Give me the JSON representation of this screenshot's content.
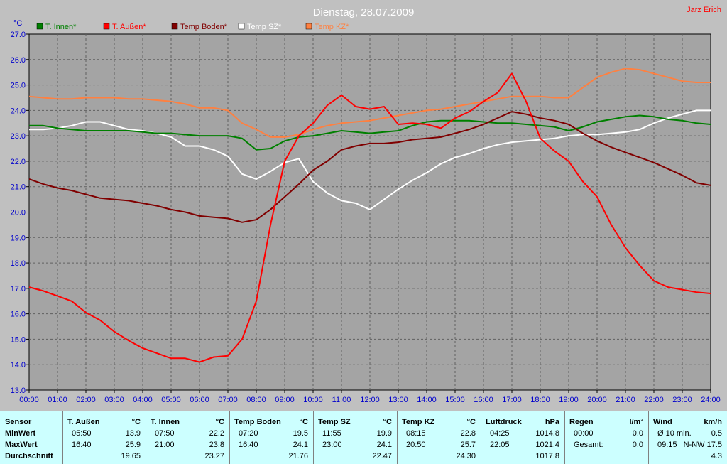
{
  "chart_data": {
    "type": "line",
    "title": "Dienstag, 28.07.2009",
    "author": "Jarz Erich",
    "ylabel": "°C",
    "ylim": [
      13.0,
      27.0
    ],
    "xlim": [
      0,
      24
    ],
    "grid": true,
    "legend_position": "top",
    "y_ticks": [
      "13.0",
      "14.0",
      "15.0",
      "16.0",
      "17.0",
      "18.0",
      "19.0",
      "20.0",
      "21.0",
      "22.0",
      "23.0",
      "24.0",
      "25.0",
      "26.0",
      "27.0"
    ],
    "x_ticks": [
      "00:00",
      "01:00",
      "02:00",
      "03:00",
      "04:00",
      "05:00",
      "06:00",
      "07:00",
      "08:00",
      "09:00",
      "10:00",
      "11:00",
      "12:00",
      "13:00",
      "14:00",
      "15:00",
      "16:00",
      "17:00",
      "18:00",
      "19:00",
      "20:00",
      "21:00",
      "22:00",
      "23:00",
      "24:00"
    ],
    "x_hours": [
      0,
      0.5,
      1,
      1.5,
      2,
      2.5,
      3,
      3.5,
      4,
      4.5,
      5,
      5.5,
      6,
      6.5,
      7,
      7.5,
      8,
      8.5,
      9,
      9.5,
      10,
      10.5,
      11,
      11.5,
      12,
      12.5,
      13,
      13.5,
      14,
      14.5,
      15,
      15.5,
      16,
      16.5,
      17,
      17.5,
      18,
      18.5,
      19,
      19.5,
      20,
      20.5,
      21,
      21.5,
      22,
      22.5,
      23,
      23.5,
      24
    ],
    "series": [
      {
        "name": "T. Innen*",
        "color": "#008000",
        "values": [
          23.4,
          23.4,
          23.3,
          23.25,
          23.2,
          23.2,
          23.2,
          23.2,
          23.15,
          23.1,
          23.1,
          23.05,
          23.0,
          23.0,
          23.0,
          22.9,
          22.45,
          22.5,
          22.8,
          22.95,
          23.0,
          23.1,
          23.2,
          23.15,
          23.1,
          23.15,
          23.2,
          23.4,
          23.55,
          23.6,
          23.6,
          23.6,
          23.55,
          23.5,
          23.5,
          23.45,
          23.4,
          23.35,
          23.2,
          23.35,
          23.55,
          23.65,
          23.75,
          23.8,
          23.75,
          23.65,
          23.6,
          23.5,
          23.45
        ]
      },
      {
        "name": "T. Außen*",
        "color": "#ff0000",
        "values": [
          17.05,
          16.9,
          16.7,
          16.5,
          16.05,
          15.75,
          15.3,
          14.95,
          14.65,
          14.45,
          14.25,
          14.25,
          14.1,
          14.3,
          14.35,
          15.0,
          16.5,
          19.5,
          22.0,
          23.0,
          23.5,
          24.2,
          24.6,
          24.15,
          24.05,
          24.15,
          23.45,
          23.5,
          23.45,
          23.3,
          23.7,
          23.95,
          24.35,
          24.7,
          25.45,
          24.35,
          22.9,
          22.4,
          22.0,
          21.2,
          20.6,
          19.5,
          18.6,
          17.9,
          17.3,
          17.05,
          16.95,
          16.85,
          16.8
        ]
      },
      {
        "name": "Temp Boden*",
        "color": "#800000",
        "values": [
          21.3,
          21.1,
          20.95,
          20.85,
          20.7,
          20.55,
          20.5,
          20.45,
          20.35,
          20.25,
          20.1,
          20.0,
          19.85,
          19.8,
          19.75,
          19.6,
          19.7,
          20.1,
          20.6,
          21.1,
          21.65,
          22.0,
          22.45,
          22.6,
          22.7,
          22.7,
          22.75,
          22.85,
          22.9,
          22.95,
          23.1,
          23.25,
          23.45,
          23.7,
          23.95,
          23.85,
          23.7,
          23.6,
          23.45,
          23.1,
          22.8,
          22.55,
          22.35,
          22.15,
          21.95,
          21.7,
          21.45,
          21.15,
          21.05
        ]
      },
      {
        "name": "Temp SZ*",
        "color": "#ffffff",
        "values": [
          23.25,
          23.25,
          23.3,
          23.4,
          23.55,
          23.55,
          23.4,
          23.25,
          23.2,
          23.1,
          22.95,
          22.6,
          22.6,
          22.45,
          22.2,
          21.5,
          21.3,
          21.6,
          21.95,
          22.1,
          21.2,
          20.75,
          20.45,
          20.35,
          20.1,
          20.5,
          20.9,
          21.25,
          21.55,
          21.9,
          22.15,
          22.3,
          22.5,
          22.65,
          22.75,
          22.8,
          22.85,
          22.9,
          23.0,
          23.05,
          23.05,
          23.1,
          23.15,
          23.25,
          23.5,
          23.7,
          23.85,
          24.0,
          24.0
        ]
      },
      {
        "name": "Temp KZ*",
        "color": "#ff8040",
        "values": [
          24.55,
          24.5,
          24.45,
          24.45,
          24.5,
          24.5,
          24.5,
          24.45,
          24.45,
          24.4,
          24.35,
          24.25,
          24.1,
          24.1,
          24.0,
          23.5,
          23.25,
          22.95,
          22.95,
          23.05,
          23.25,
          23.4,
          23.5,
          23.55,
          23.6,
          23.7,
          23.8,
          23.9,
          24.0,
          24.05,
          24.15,
          24.25,
          24.35,
          24.45,
          24.55,
          24.55,
          24.55,
          24.5,
          24.5,
          24.9,
          25.3,
          25.5,
          25.65,
          25.6,
          25.45,
          25.3,
          25.15,
          25.1,
          25.1
        ]
      }
    ]
  },
  "table": {
    "row_labels": {
      "header": "Sensor",
      "min": "MinWert",
      "max": "MaxWert",
      "avg": "Durchschnitt"
    },
    "columns": [
      {
        "name": "T. Außen",
        "unit": "°C",
        "min_time": "05:50",
        "min": "13.9",
        "max_time": "16:40",
        "max": "25.9",
        "avg": "19.65"
      },
      {
        "name": "T. Innen",
        "unit": "°C",
        "min_time": "07:50",
        "min": "22.2",
        "max_time": "21:00",
        "max": "23.8",
        "avg": "23.27"
      },
      {
        "name": "Temp Boden",
        "unit": "°C",
        "min_time": "07:20",
        "min": "19.5",
        "max_time": "16:40",
        "max": "24.1",
        "avg": "21.76"
      },
      {
        "name": "Temp SZ",
        "unit": "°C",
        "min_time": "11:55",
        "min": "19.9",
        "max_time": "23:00",
        "max": "24.1",
        "avg": "22.47"
      },
      {
        "name": "Temp KZ",
        "unit": "°C",
        "min_time": "08:15",
        "min": "22.8",
        "max_time": "20:50",
        "max": "25.7",
        "avg": "24.30"
      },
      {
        "name": "Luftdruck",
        "unit": "hPa",
        "min_time": "04:25",
        "min": "1014.8",
        "max_time": "22:05",
        "max": "1021.4",
        "avg": "1017.8"
      },
      {
        "name": "Regen",
        "unit": "l/m²",
        "min_time": "00:00",
        "min": "0.0",
        "max_time": "Gesamt:",
        "max": "0.0",
        "avg": ""
      },
      {
        "name": "Wind",
        "unit": "km/h",
        "min_time": "Ø 10 min.",
        "min": "0.5",
        "max_time": "09:15",
        "max": "N-NW 17.5",
        "avg": "4.3"
      }
    ]
  }
}
